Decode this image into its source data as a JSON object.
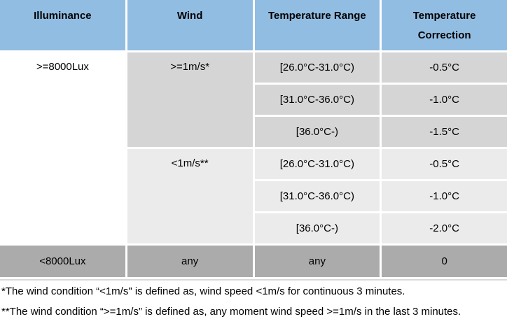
{
  "table": {
    "headers": {
      "illuminance": "Illuminance",
      "wind": "Wind",
      "temperature_range": "Temperature Range",
      "temperature_correction": "Temperature Correction"
    },
    "merged": {
      "illuminance_high": ">=8000Lux",
      "wind_ge_1ms": ">=1m/s*",
      "wind_lt_1ms": "<1m/s**"
    },
    "rows": [
      {
        "range": "[26.0°C-31.0°C)",
        "correction": "-0.5°C"
      },
      {
        "range": "[31.0°C-36.0°C)",
        "correction": "-1.0°C"
      },
      {
        "range": "[36.0°C-)",
        "correction": "-1.5°C"
      },
      {
        "range": "[26.0°C-31.0°C)",
        "correction": "-0.5°C"
      },
      {
        "range": "[31.0°C-36.0°C)",
        "correction": "-1.0°C"
      },
      {
        "range": "[36.0°C-)",
        "correction": "-2.0°C"
      }
    ],
    "last_row": {
      "illuminance": "<8000Lux",
      "wind": "any",
      "range": "any",
      "correction": "0"
    }
  },
  "footnotes": [
    "*The wind condition “<1m/s\" is defined as, wind speed <1m/s for continuous 3 minutes.",
    "**The wind condition “>=1m/s” is defined as, any moment wind speed >=1m/s in the last 3 minutes."
  ],
  "colors": {
    "header_blue": "#92bde2",
    "group1_gray": "#d5d5d5",
    "group2_gray": "#ebebeb",
    "bottom_gray": "#ababab",
    "text": "#000000"
  }
}
